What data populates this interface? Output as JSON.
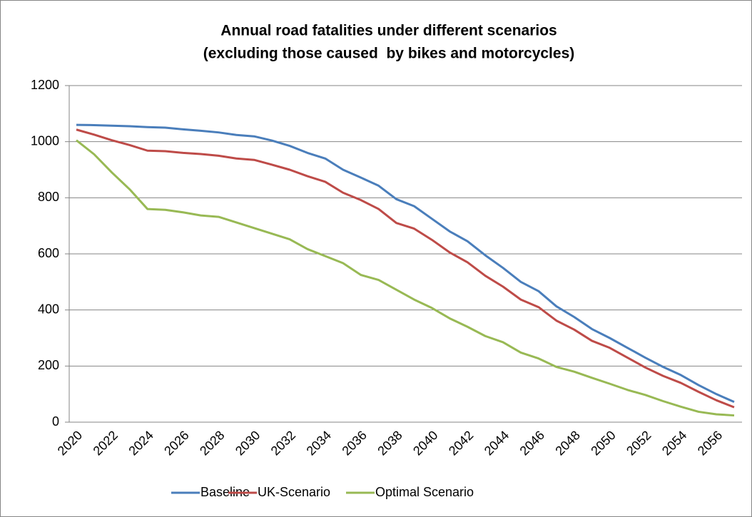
{
  "chart_data": {
    "type": "line",
    "title": [
      "Annual road fatalities under different scenarios",
      "(excluding those caused  by bikes and motorcycles)"
    ],
    "categories": [
      "2020",
      null,
      "2022",
      null,
      "2024",
      null,
      "2026",
      null,
      "2028",
      null,
      "2030",
      null,
      "2032",
      null,
      "2034",
      null,
      "2036",
      null,
      "2038",
      null,
      "2040",
      null,
      "2042",
      null,
      "2044",
      null,
      "2046",
      null,
      "2048",
      null,
      "2050",
      null,
      "2052",
      null,
      "2054",
      null,
      "2056",
      null
    ],
    "series": [
      {
        "name": "Baseline",
        "color": "#4a7ebb",
        "values": [
          1060,
          1059,
          1057,
          1055,
          1052,
          1050,
          1044,
          1039,
          1033,
          1024,
          1019,
          1004,
          985,
          960,
          940,
          900,
          872,
          843,
          795,
          770,
          725,
          680,
          645,
          595,
          550,
          500,
          467,
          413,
          375,
          332,
          300,
          265,
          230,
          197,
          168,
          132,
          100,
          72
        ]
      },
      {
        "name": "UK-Scenario",
        "color": "#be4b48",
        "values": [
          1043,
          1025,
          1005,
          988,
          968,
          966,
          960,
          956,
          950,
          940,
          935,
          918,
          900,
          877,
          857,
          818,
          792,
          760,
          710,
          690,
          650,
          605,
          570,
          522,
          483,
          437,
          410,
          362,
          330,
          290,
          265,
          230,
          195,
          165,
          140,
          108,
          78,
          53
        ]
      },
      {
        "name": "Optimal Scenario",
        "color": "#98b954",
        "values": [
          1005,
          955,
          890,
          830,
          760,
          757,
          748,
          737,
          732,
          712,
          692,
          672,
          652,
          617,
          592,
          567,
          525,
          507,
          472,
          437,
          407,
          370,
          340,
          307,
          285,
          248,
          227,
          197,
          180,
          158,
          137,
          115,
          97,
          75,
          55,
          37,
          28,
          24
        ]
      }
    ],
    "ylim": [
      0,
      1200
    ],
    "yticks": [
      0,
      200,
      400,
      600,
      800,
      1000,
      1200
    ],
    "grid": true,
    "legend": "bottom"
  }
}
